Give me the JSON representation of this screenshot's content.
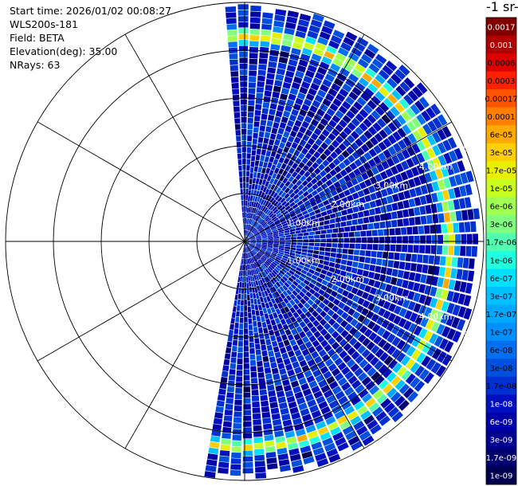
{
  "info": {
    "start_time": "Start time: 2026/01/02 00:08:27",
    "instrument": "WLS200s-181",
    "field": "Field: BETA",
    "elevation": "Elevation(deg): 35.00",
    "nrays": "NRays: 63"
  },
  "colorbar": {
    "title": "-1 sr-",
    "labels": [
      "0.0017",
      "0.001",
      "0.0006",
      "0.0003",
      "0.00017",
      "0.0001",
      "6e-05",
      "3e-05",
      "1.7e-05",
      "1e-05",
      "6e-06",
      "3e-06",
      "1.7e-06",
      "1e-06",
      "6e-07",
      "3e-07",
      "1.7e-07",
      "1e-07",
      "6e-08",
      "3e-08",
      "1.7e-08",
      "1e-08",
      "6e-09",
      "3e-09",
      "1.7e-09",
      "1e-09"
    ],
    "colors": [
      "#800000",
      "#b00000",
      "#dd0000",
      "#ff2000",
      "#ff5500",
      "#ff8000",
      "#ffaa00",
      "#ffd000",
      "#e8f000",
      "#c8ff20",
      "#a0ff50",
      "#80ff80",
      "#50ffb0",
      "#20ffe0",
      "#00e0ff",
      "#00c0ff",
      "#00a8ff",
      "#0090ff",
      "#0070f0",
      "#0050e0",
      "#0030d0",
      "#0010c0",
      "#0000aa",
      "#000090",
      "#000070",
      "#000050"
    ],
    "label_color_dark": "#000000",
    "label_color_light": "#ffffff"
  },
  "chart_data": {
    "type": "heatmap",
    "projection": "polar",
    "azimuth_range_deg": [
      -5,
      190
    ],
    "nrays": 63,
    "max_range_km": 5.0,
    "range_rings_km": [
      1,
      2,
      3,
      4,
      5
    ],
    "ring_labels": [
      "1.00km",
      "2.00km",
      "3.00km",
      "4.00km",
      "5.00km"
    ],
    "aerosol_layer_range_km": 4.3,
    "aerosol_layer_peak_beta": 0.0001,
    "background_beta_range": [
      1e-09,
      1e-07
    ]
  }
}
